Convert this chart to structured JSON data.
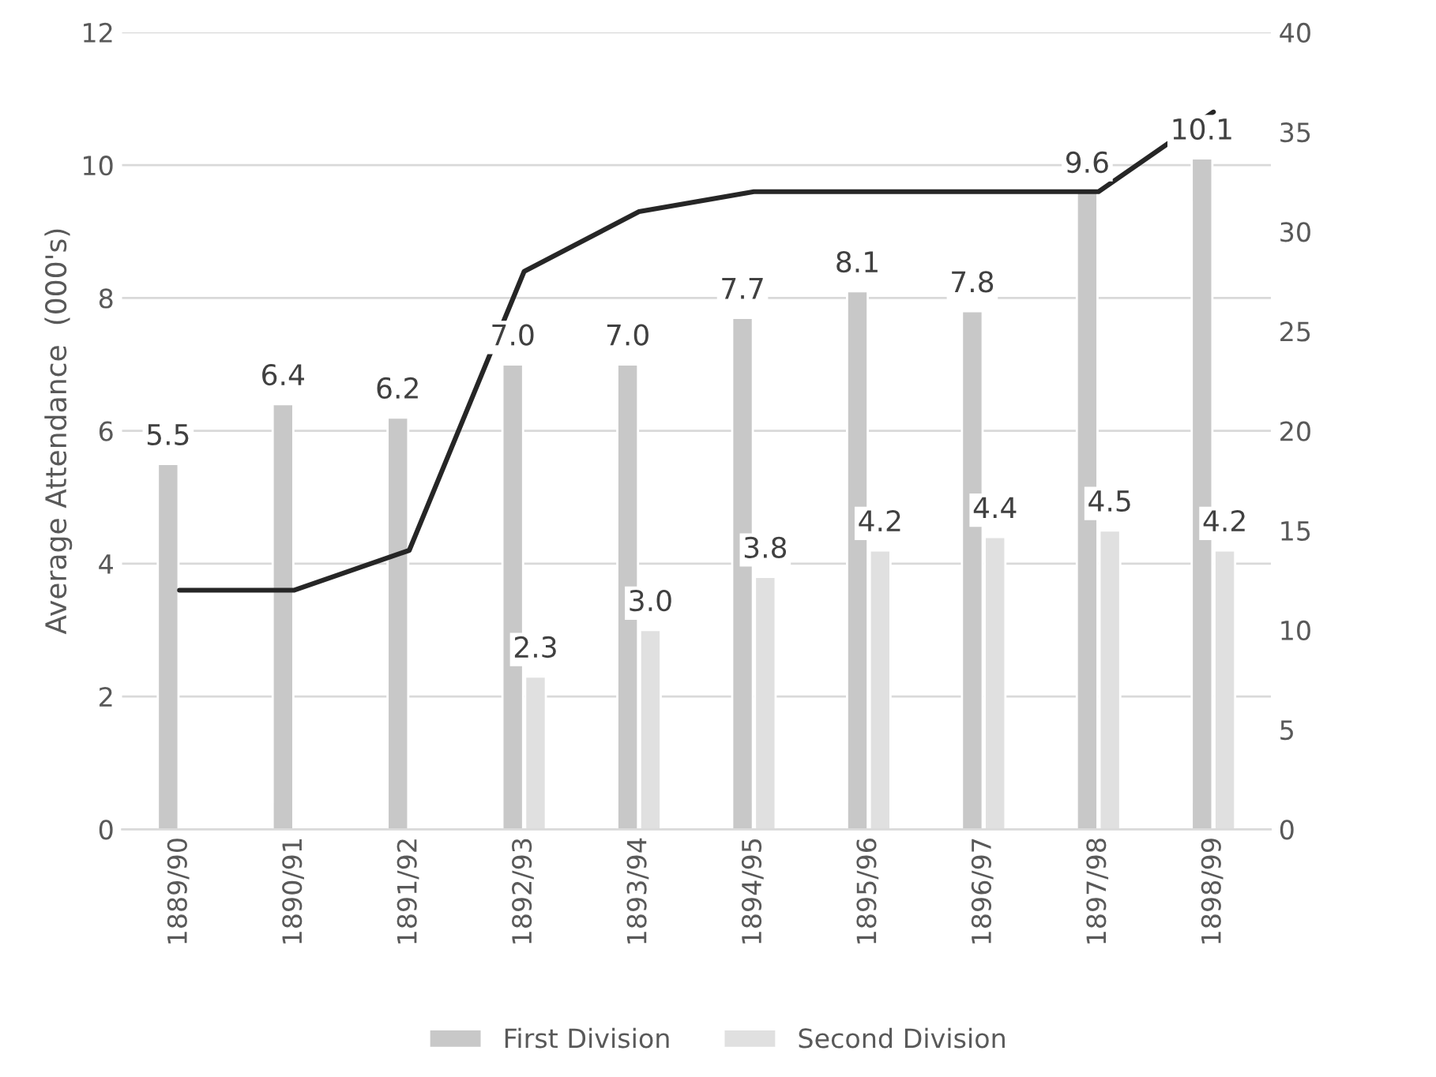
{
  "chart_data": {
    "type": "bar",
    "ylabel": "Average Attendance  (000's)",
    "categories": [
      "1889/90",
      "1890/91",
      "1891/92",
      "1892/93",
      "1893/94",
      "1894/95",
      "1895/96",
      "1896/97",
      "1897/98",
      "1898/99"
    ],
    "series": [
      {
        "name": "First Division",
        "color": "#c8c8c8",
        "values": [
          5.5,
          6.4,
          6.2,
          7.0,
          7.0,
          7.7,
          8.1,
          7.8,
          9.6,
          10.1
        ],
        "value_labels": [
          "5.5",
          "6.4",
          "6.2",
          "7.0",
          "7.0",
          "7.7",
          "8.1",
          "7.8",
          "9.6",
          "10.1"
        ]
      },
      {
        "name": "Second Division",
        "color": "#e0e0e0",
        "values": [
          null,
          null,
          null,
          2.3,
          3.0,
          3.8,
          4.2,
          4.4,
          4.5,
          4.2
        ],
        "value_labels": [
          null,
          null,
          null,
          "2.3",
          "3.0",
          "3.8",
          "4.2",
          "4.4",
          "4.5",
          "4.2"
        ]
      },
      {
        "type": "line",
        "axis": "y2",
        "color": "#262626",
        "values": [
          12,
          12,
          14,
          28,
          31,
          32,
          32,
          32,
          32,
          36
        ]
      }
    ],
    "ylim": [
      0,
      12
    ],
    "yticks": [
      0,
      2,
      4,
      6,
      8,
      10,
      12
    ],
    "y2lim": [
      0,
      40
    ],
    "y2ticks": [
      0,
      5,
      10,
      15,
      20,
      25,
      30,
      35,
      40
    ],
    "grid": "y",
    "legend": "bottom",
    "marker": "none",
    "line_style": "solid"
  }
}
